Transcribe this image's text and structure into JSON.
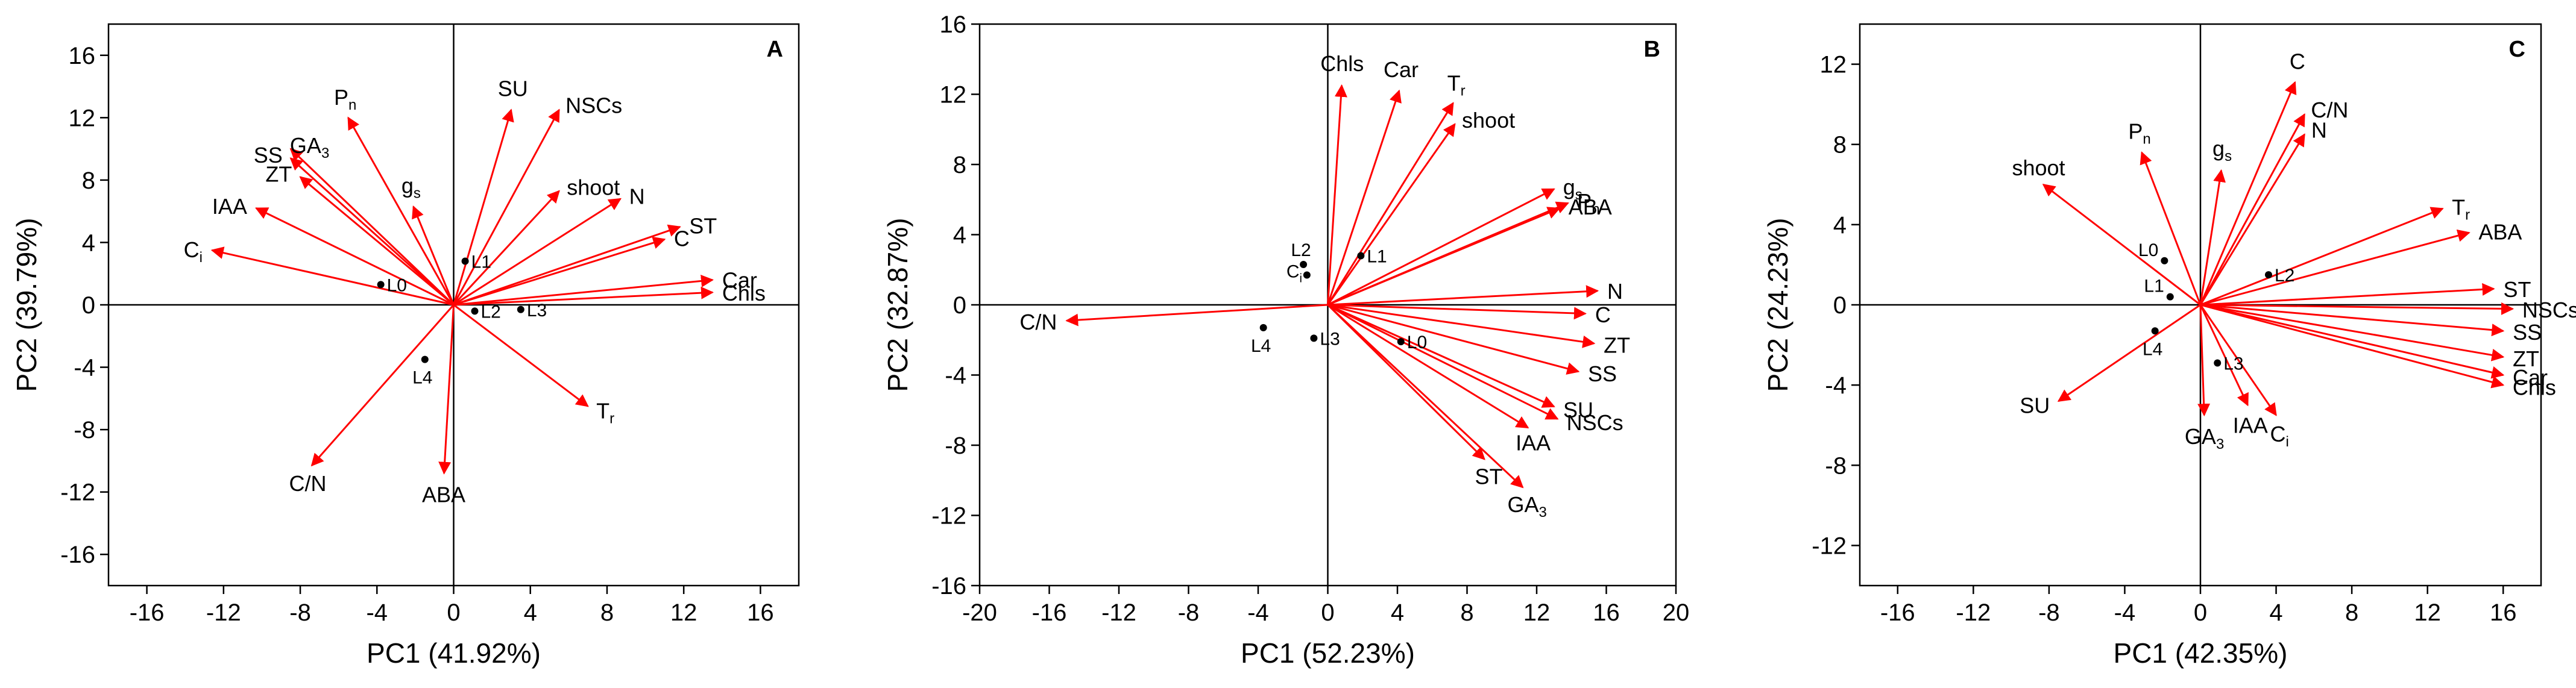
{
  "colors": {
    "arrow": "#ff0000",
    "axis": "#000000",
    "point": "#000000"
  },
  "chart_data": [
    {
      "type": "scatter",
      "subtype": "pca-biplot",
      "panel": "A",
      "xlabel": "PC1 (41.92%)",
      "ylabel": "PC2 (39.79%)",
      "xlim": [
        -18,
        18
      ],
      "ylim": [
        -18,
        18
      ],
      "xticks": [
        -16,
        -12,
        -8,
        -4,
        0,
        4,
        8,
        12,
        16
      ],
      "yticks": [
        -16,
        -12,
        -8,
        -4,
        0,
        4,
        8,
        12,
        16
      ],
      "vectors": [
        {
          "name": "Pn",
          "base": "P",
          "sub": "n",
          "x": -5.5,
          "y": 12.0,
          "anchor": "middle"
        },
        {
          "name": "GA3",
          "base": "GA",
          "sub": "3",
          "x": -8.5,
          "y": 10.0,
          "anchor": "start"
        },
        {
          "name": "SS",
          "base": "SS",
          "sub": "",
          "x": -8.5,
          "y": 9.4,
          "anchor": "end"
        },
        {
          "name": "ZT",
          "base": "ZT",
          "sub": "",
          "x": -8.0,
          "y": 8.2,
          "anchor": "end"
        },
        {
          "name": "gs",
          "base": "g",
          "sub": "s",
          "x": -2.1,
          "y": 6.3,
          "anchor": "middle"
        },
        {
          "name": "IAA",
          "base": "IAA",
          "sub": "",
          "x": -10.3,
          "y": 6.2,
          "anchor": "end"
        },
        {
          "name": "Ci",
          "base": "C",
          "sub": "i",
          "x": -12.6,
          "y": 3.5,
          "anchor": "end"
        },
        {
          "name": "C/N",
          "base": "C/N",
          "sub": "",
          "x": -7.4,
          "y": -10.3,
          "anchor": "middle"
        },
        {
          "name": "ABA",
          "base": "ABA",
          "sub": "",
          "x": -0.5,
          "y": -10.8,
          "anchor": "middle"
        },
        {
          "name": "Tr",
          "base": "T",
          "sub": "r",
          "x": 7.0,
          "y": -6.5,
          "anchor": "start"
        },
        {
          "name": "SU",
          "base": "SU",
          "sub": "",
          "x": 3.0,
          "y": 12.5,
          "anchor": "middle"
        },
        {
          "name": "NSCs",
          "base": "NSCs",
          "sub": "",
          "x": 5.5,
          "y": 12.5,
          "anchor": "start"
        },
        {
          "name": "shoot",
          "base": "shoot",
          "sub": "",
          "x": 5.5,
          "y": 7.3,
          "anchor": "start"
        },
        {
          "name": "N",
          "base": "N",
          "sub": "",
          "x": 8.7,
          "y": 6.8,
          "anchor": "start"
        },
        {
          "name": "ST",
          "base": "ST",
          "sub": "",
          "x": 11.8,
          "y": 5.0,
          "anchor": "start"
        },
        {
          "name": "C",
          "base": "C",
          "sub": "",
          "x": 11.0,
          "y": 4.2,
          "anchor": "start"
        },
        {
          "name": "Car",
          "base": "Car",
          "sub": "",
          "x": 13.5,
          "y": 1.6,
          "anchor": "start"
        },
        {
          "name": "Chls",
          "base": "Chls",
          "sub": "",
          "x": 13.5,
          "y": 0.8,
          "anchor": "start"
        }
      ],
      "observations": [
        {
          "name": "L0",
          "x": -3.8,
          "y": 1.3
        },
        {
          "name": "L1",
          "x": 0.6,
          "y": 2.8
        },
        {
          "name": "L2",
          "x": 1.1,
          "y": -0.4
        },
        {
          "name": "L3",
          "x": 3.5,
          "y": -0.3
        },
        {
          "name": "L4",
          "x": -1.5,
          "y": -3.5
        }
      ]
    },
    {
      "type": "scatter",
      "subtype": "pca-biplot",
      "panel": "B",
      "xlabel": "PC1 (52.23%)",
      "ylabel": "PC2 (32.87%)",
      "xlim": [
        -20,
        20
      ],
      "ylim": [
        -16,
        16
      ],
      "xticks": [
        -20,
        -16,
        -12,
        -8,
        -4,
        0,
        4,
        8,
        12,
        16,
        20
      ],
      "yticks": [
        -16,
        -12,
        -8,
        -4,
        0,
        4,
        8,
        12,
        16
      ],
      "vectors": [
        {
          "name": "Chls",
          "base": "Chls",
          "sub": "",
          "x": 0.8,
          "y": 12.5,
          "anchor": "middle"
        },
        {
          "name": "Car",
          "base": "Car",
          "sub": "",
          "x": 4.1,
          "y": 12.2,
          "anchor": "middle"
        },
        {
          "name": "Tr",
          "base": "T",
          "sub": "r",
          "x": 7.2,
          "y": 11.5,
          "anchor": "middle"
        },
        {
          "name": "shoot",
          "base": "shoot",
          "sub": "",
          "x": 7.3,
          "y": 10.3,
          "anchor": "start"
        },
        {
          "name": "gs",
          "base": "g",
          "sub": "s",
          "x": 13.0,
          "y": 6.6,
          "anchor": "start"
        },
        {
          "name": "Pn",
          "base": "P",
          "sub": "n",
          "x": 13.8,
          "y": 5.8,
          "anchor": "start"
        },
        {
          "name": "ABA",
          "base": "ABA",
          "sub": "",
          "x": 13.3,
          "y": 5.5,
          "anchor": "start"
        },
        {
          "name": "N",
          "base": "N",
          "sub": "",
          "x": 15.5,
          "y": 0.8,
          "anchor": "start"
        },
        {
          "name": "C",
          "base": "C",
          "sub": "",
          "x": 14.8,
          "y": -0.5,
          "anchor": "start"
        },
        {
          "name": "ZT",
          "base": "ZT",
          "sub": "",
          "x": 15.3,
          "y": -2.2,
          "anchor": "start"
        },
        {
          "name": "SS",
          "base": "SS",
          "sub": "",
          "x": 14.4,
          "y": -3.8,
          "anchor": "start"
        },
        {
          "name": "SU",
          "base": "SU",
          "sub": "",
          "x": 13.0,
          "y": -5.8,
          "anchor": "start"
        },
        {
          "name": "NSCs",
          "base": "NSCs",
          "sub": "",
          "x": 13.2,
          "y": -6.5,
          "anchor": "start"
        },
        {
          "name": "IAA",
          "base": "IAA",
          "sub": "",
          "x": 11.5,
          "y": -7.0,
          "anchor": "middle"
        },
        {
          "name": "ST",
          "base": "ST",
          "sub": "",
          "x": 9.0,
          "y": -8.8,
          "anchor": "middle"
        },
        {
          "name": "GA3",
          "base": "GA",
          "sub": "3",
          "x": 11.2,
          "y": -10.4,
          "anchor": "middle"
        },
        {
          "name": "C/N",
          "base": "C/N",
          "sub": "",
          "x": -15.0,
          "y": -0.9,
          "anchor": "end"
        }
      ],
      "observations": [
        {
          "name": "L0",
          "x": 4.2,
          "y": -2.1
        },
        {
          "name": "L1",
          "x": 1.9,
          "y": 2.8
        },
        {
          "name": "L2",
          "x": -1.4,
          "y": 2.3
        },
        {
          "name": "L3",
          "x": -0.8,
          "y": -1.9
        },
        {
          "name": "L4",
          "x": -3.7,
          "y": -1.3
        },
        {
          "name": "Ci",
          "x": -1.2,
          "y": 1.7
        }
      ]
    },
    {
      "type": "scatter",
      "subtype": "pca-biplot",
      "panel": "C",
      "xlabel": "PC1 (42.35%)",
      "ylabel": "PC2 (24.23%)",
      "xlim": [
        -18,
        18
      ],
      "ylim": [
        -14,
        14
      ],
      "xticks": [
        -16,
        -12,
        -8,
        -4,
        0,
        4,
        8,
        12,
        16
      ],
      "yticks": [
        -12,
        -8,
        -4,
        0,
        4,
        8,
        12
      ],
      "vectors": [
        {
          "name": "C",
          "base": "C",
          "sub": "",
          "x": 5.0,
          "y": 11.1,
          "anchor": "middle"
        },
        {
          "name": "C/N",
          "base": "C/N",
          "sub": "",
          "x": 5.5,
          "y": 9.5,
          "anchor": "start"
        },
        {
          "name": "N",
          "base": "N",
          "sub": "",
          "x": 5.5,
          "y": 8.5,
          "anchor": "start"
        },
        {
          "name": "Pn",
          "base": "P",
          "sub": "n",
          "x": -3.1,
          "y": 7.6,
          "anchor": "middle"
        },
        {
          "name": "gs",
          "base": "g",
          "sub": "s",
          "x": 1.1,
          "y": 6.7,
          "anchor": "middle"
        },
        {
          "name": "shoot",
          "base": "shoot",
          "sub": "",
          "x": -8.3,
          "y": 6.0,
          "anchor": "middle"
        },
        {
          "name": "Tr",
          "base": "T",
          "sub": "r",
          "x": 12.8,
          "y": 4.8,
          "anchor": "start"
        },
        {
          "name": "ABA",
          "base": "ABA",
          "sub": "",
          "x": 14.2,
          "y": 3.6,
          "anchor": "start"
        },
        {
          "name": "ST",
          "base": "ST",
          "sub": "",
          "x": 15.5,
          "y": 0.8,
          "anchor": "start"
        },
        {
          "name": "NSCs",
          "base": "NSCs",
          "sub": "",
          "x": 16.5,
          "y": -0.2,
          "anchor": "start"
        },
        {
          "name": "SS",
          "base": "SS",
          "sub": "",
          "x": 16.0,
          "y": -1.3,
          "anchor": "start"
        },
        {
          "name": "ZT",
          "base": "ZT",
          "sub": "",
          "x": 16.0,
          "y": -2.6,
          "anchor": "start"
        },
        {
          "name": "Car",
          "base": "Car",
          "sub": "",
          "x": 16.0,
          "y": -3.5,
          "anchor": "start"
        },
        {
          "name": "Chls",
          "base": "Chls",
          "sub": "",
          "x": 16.0,
          "y": -4.0,
          "anchor": "start"
        },
        {
          "name": "Ci",
          "base": "C",
          "sub": "i",
          "x": 4.0,
          "y": -5.5,
          "anchor": "middle"
        },
        {
          "name": "IAA",
          "base": "IAA",
          "sub": "",
          "x": 2.5,
          "y": -5.0,
          "anchor": "middle"
        },
        {
          "name": "GA3",
          "base": "GA",
          "sub": "3",
          "x": 0.2,
          "y": -5.5,
          "anchor": "middle"
        },
        {
          "name": "SU",
          "base": "SU",
          "sub": "",
          "x": -7.5,
          "y": -4.8,
          "anchor": "end"
        }
      ],
      "observations": [
        {
          "name": "L0",
          "x": -1.9,
          "y": 2.2
        },
        {
          "name": "L1",
          "x": -1.6,
          "y": 0.4
        },
        {
          "name": "L2",
          "x": 3.6,
          "y": 1.5
        },
        {
          "name": "L3",
          "x": 0.9,
          "y": -2.9
        },
        {
          "name": "L4",
          "x": -2.4,
          "y": -1.3
        }
      ]
    }
  ]
}
